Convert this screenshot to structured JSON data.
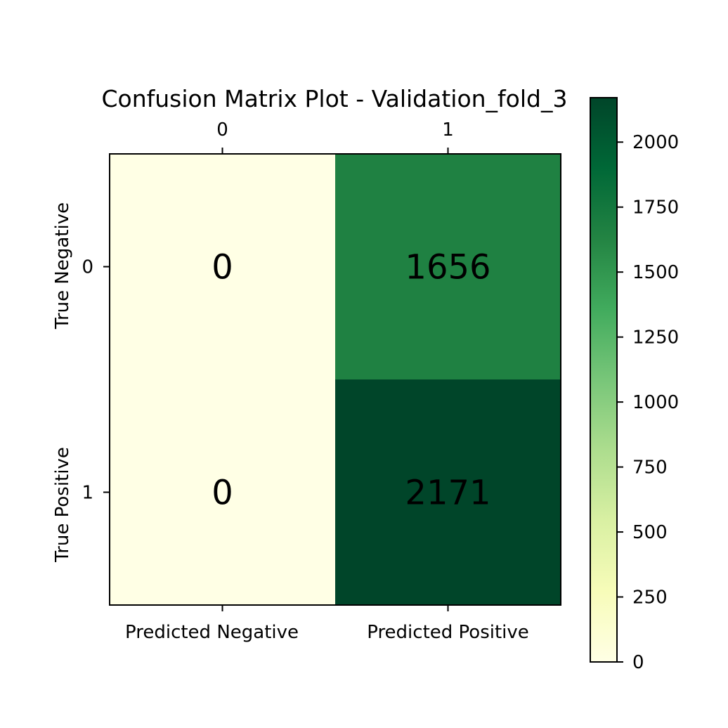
{
  "chart_data": {
    "type": "heatmap",
    "title": "Confusion Matrix Plot - Validation_fold_3",
    "top_tick_labels": [
      "0",
      "1"
    ],
    "bottom_tick_labels": [
      "Predicted Negative",
      "Predicted Positive"
    ],
    "left_tick_labels": [
      "0",
      "1"
    ],
    "row_labels": [
      "True Negative",
      "True Positive"
    ],
    "matrix": [
      [
        0,
        1656
      ],
      [
        0,
        2171
      ]
    ],
    "colormap": "YlGn",
    "colorbar": {
      "min": 0,
      "max": 2171,
      "ticks": [
        0,
        250,
        500,
        750,
        1000,
        1250,
        1500,
        1750,
        2000
      ]
    }
  }
}
